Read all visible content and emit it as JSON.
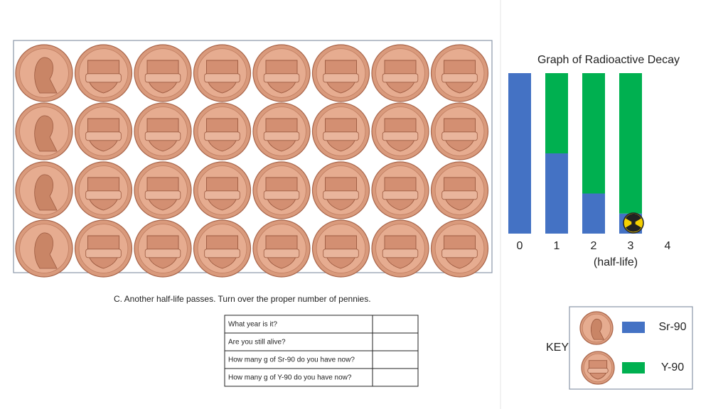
{
  "chart_data": {
    "type": "stacked-bar",
    "title": "Graph of Radioactive Decay",
    "x_label": "(half-life)",
    "categories": [
      "0",
      "1",
      "2",
      "3",
      "4"
    ],
    "series": [
      {
        "name": "Sr-90",
        "color": "#4472c4",
        "values": [
          32,
          16,
          8,
          4,
          null
        ]
      },
      {
        "name": "Y-90",
        "color": "#00b050",
        "values": [
          0,
          16,
          24,
          28,
          null
        ]
      }
    ],
    "ylim": [
      0,
      32
    ]
  },
  "instruction": "C.  Another half-life passes.  Turn over the proper number of pennies.",
  "table": {
    "rows": [
      "What year is it?",
      "Are you still alive?",
      "How many g of Sr-90 do you have now?",
      "How many g of Y-90 do you have now?"
    ]
  },
  "key": {
    "label": "KEY"
  }
}
